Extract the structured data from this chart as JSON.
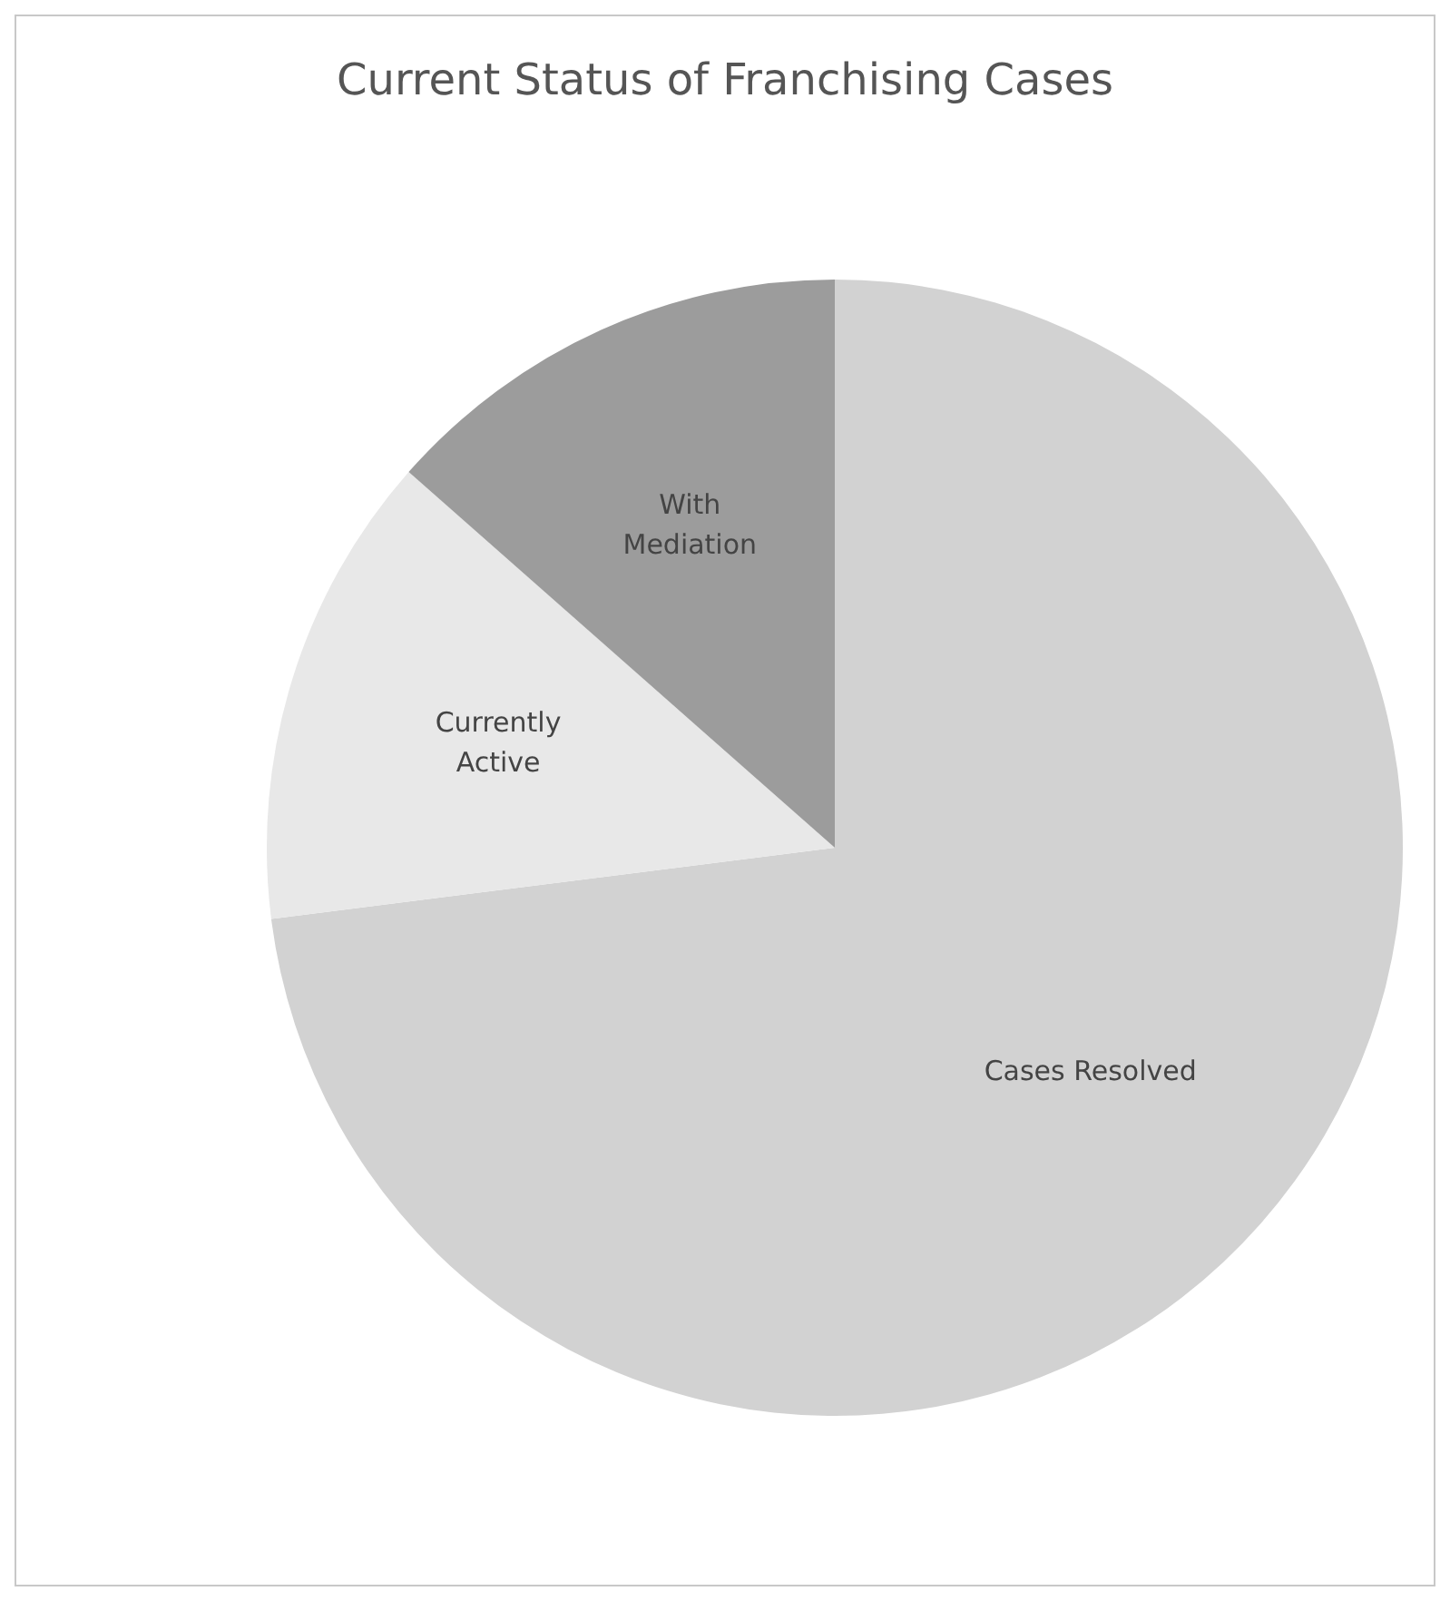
{
  "chart_data": {
    "type": "pie",
    "title": "Current Status of Franchising Cases",
    "categories": [
      "Cases Resolved",
      "Currently Active",
      "With Mediation"
    ],
    "values": [
      73,
      13.5,
      13.5
    ],
    "colors": [
      "#d2d2d2",
      "#e8e8e8",
      "#9c9c9c"
    ]
  }
}
